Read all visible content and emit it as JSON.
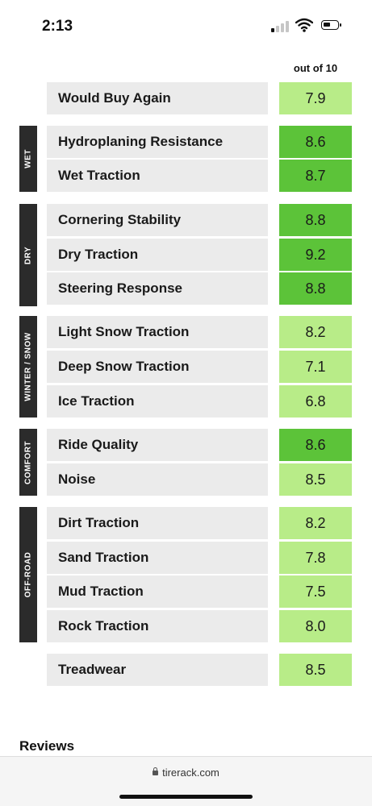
{
  "status_bar": {
    "time": "2:13",
    "signal_icon": "cellular-signal-icon",
    "wifi_icon": "wifi-icon",
    "battery_icon": "battery-icon"
  },
  "score_header": "out of 10",
  "colors": {
    "dark_green": "#5cc339",
    "light_green": "#b8ec88",
    "label_bg": "#ebebeb",
    "category_band": "#2b2b2b"
  },
  "categories": [
    {
      "label": "WET"
    },
    {
      "label": "DRY"
    },
    {
      "label": "WINTER / SNOW"
    },
    {
      "label": "COMFORT"
    },
    {
      "label": "OFF-ROAD"
    }
  ],
  "ratings": [
    {
      "label": "Would Buy Again",
      "score": "7.9"
    },
    {
      "label": "Hydroplaning Resistance",
      "score": "8.6"
    },
    {
      "label": "Wet Traction",
      "score": "8.7"
    },
    {
      "label": "Cornering Stability",
      "score": "8.8"
    },
    {
      "label": "Dry Traction",
      "score": "9.2"
    },
    {
      "label": "Steering Response",
      "score": "8.8"
    },
    {
      "label": "Light Snow Traction",
      "score": "8.2"
    },
    {
      "label": "Deep Snow Traction",
      "score": "7.1"
    },
    {
      "label": "Ice Traction",
      "score": "6.8"
    },
    {
      "label": "Ride Quality",
      "score": "8.6"
    },
    {
      "label": "Noise",
      "score": "8.5"
    },
    {
      "label": "Dirt Traction",
      "score": "8.2"
    },
    {
      "label": "Sand Traction",
      "score": "7.8"
    },
    {
      "label": "Mud Traction",
      "score": "7.5"
    },
    {
      "label": "Rock Traction",
      "score": "8.0"
    },
    {
      "label": "Treadwear",
      "score": "8.5"
    }
  ],
  "reviews_heading": "Reviews",
  "browser": {
    "url": "tirerack.com"
  }
}
